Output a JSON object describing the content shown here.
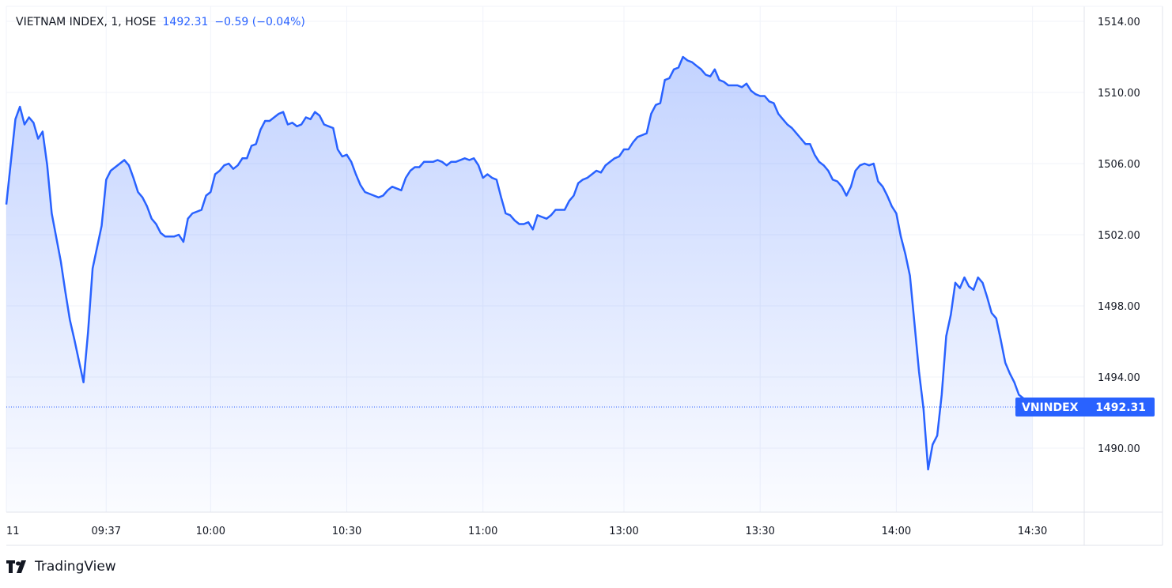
{
  "header": {
    "title": "VIETNAM INDEX, 1, HOSE",
    "last": "1492.31",
    "change": "−0.59 (−0.04%)"
  },
  "price_label": {
    "symbol": "VNINDEX",
    "value": "1492.31"
  },
  "brand": {
    "name": "TradingView"
  },
  "colors": {
    "line": "#2962ff",
    "grid": "#f0f3fa",
    "label_bg": "#2962ff"
  },
  "chart_data": {
    "type": "area",
    "title": "VIETNAM INDEX, 1, HOSE",
    "ylim": [
      1487,
      1515
    ],
    "y_ticks": [
      "1490.00",
      "1494.00",
      "1498.00",
      "1502.00",
      "1506.00",
      "1510.00",
      "1514.00"
    ],
    "x_ticks": [
      "11",
      "09:37",
      "10:00",
      "10:30",
      "11:00",
      "13:00",
      "13:30",
      "14:00",
      "14:30"
    ],
    "grid": true,
    "y_axis": "right",
    "last_value": 1492.31,
    "points": [
      [
        "09:15",
        1503.7
      ],
      [
        "09:17",
        1508.5
      ],
      [
        "09:18",
        1509.2
      ],
      [
        "09:19",
        1508.2
      ],
      [
        "09:20",
        1508.6
      ],
      [
        "09:21",
        1508.3
      ],
      [
        "09:22",
        1507.4
      ],
      [
        "09:23",
        1507.8
      ],
      [
        "09:24",
        1505.9
      ],
      [
        "09:25",
        1503.2
      ],
      [
        "09:27",
        1500.5
      ],
      [
        "09:28",
        1498.8
      ],
      [
        "09:29",
        1497.2
      ],
      [
        "09:30",
        1496.1
      ],
      [
        "09:32",
        1493.7
      ],
      [
        "09:33",
        1496.5
      ],
      [
        "09:34",
        1500.1
      ],
      [
        "09:36",
        1502.5
      ],
      [
        "09:37",
        1505.1
      ],
      [
        "09:38",
        1505.6
      ],
      [
        "09:40",
        1506.0
      ],
      [
        "09:41",
        1506.2
      ],
      [
        "09:42",
        1505.9
      ],
      [
        "09:43",
        1505.2
      ],
      [
        "09:44",
        1504.4
      ],
      [
        "09:45",
        1504.1
      ],
      [
        "09:46",
        1503.6
      ],
      [
        "09:47",
        1502.9
      ],
      [
        "09:48",
        1502.6
      ],
      [
        "09:49",
        1502.1
      ],
      [
        "09:50",
        1501.9
      ],
      [
        "09:52",
        1501.9
      ],
      [
        "09:53",
        1502.0
      ],
      [
        "09:54",
        1501.6
      ],
      [
        "09:55",
        1502.9
      ],
      [
        "09:56",
        1503.2
      ],
      [
        "09:58",
        1503.4
      ],
      [
        "09:59",
        1504.2
      ],
      [
        "10:00",
        1504.4
      ],
      [
        "10:01",
        1505.4
      ],
      [
        "10:02",
        1505.6
      ],
      [
        "10:03",
        1505.9
      ],
      [
        "10:04",
        1506.0
      ],
      [
        "10:05",
        1505.7
      ],
      [
        "10:06",
        1505.9
      ],
      [
        "10:07",
        1506.3
      ],
      [
        "10:08",
        1506.3
      ],
      [
        "10:09",
        1507.0
      ],
      [
        "10:10",
        1507.1
      ],
      [
        "10:11",
        1507.9
      ],
      [
        "10:12",
        1508.4
      ],
      [
        "10:13",
        1508.4
      ],
      [
        "10:15",
        1508.8
      ],
      [
        "10:16",
        1508.9
      ],
      [
        "10:17",
        1508.2
      ],
      [
        "10:18",
        1508.3
      ],
      [
        "10:19",
        1508.1
      ],
      [
        "10:20",
        1508.2
      ],
      [
        "10:21",
        1508.6
      ],
      [
        "10:22",
        1508.5
      ],
      [
        "10:23",
        1508.9
      ],
      [
        "10:24",
        1508.7
      ],
      [
        "10:25",
        1508.2
      ],
      [
        "10:26",
        1508.1
      ],
      [
        "10:27",
        1508.0
      ],
      [
        "10:28",
        1506.8
      ],
      [
        "10:29",
        1506.4
      ],
      [
        "10:30",
        1506.5
      ],
      [
        "10:31",
        1506.1
      ],
      [
        "10:32",
        1505.4
      ],
      [
        "10:33",
        1504.8
      ],
      [
        "10:34",
        1504.4
      ],
      [
        "10:36",
        1504.2
      ],
      [
        "10:37",
        1504.1
      ],
      [
        "10:38",
        1504.2
      ],
      [
        "10:39",
        1504.5
      ],
      [
        "10:40",
        1504.7
      ],
      [
        "10:42",
        1504.5
      ],
      [
        "10:43",
        1505.2
      ],
      [
        "10:44",
        1505.6
      ],
      [
        "10:45",
        1505.8
      ],
      [
        "10:46",
        1505.8
      ],
      [
        "10:47",
        1506.1
      ],
      [
        "10:49",
        1506.1
      ],
      [
        "10:50",
        1506.2
      ],
      [
        "10:51",
        1506.1
      ],
      [
        "10:52",
        1505.9
      ],
      [
        "10:53",
        1506.1
      ],
      [
        "10:54",
        1506.1
      ],
      [
        "10:56",
        1506.3
      ],
      [
        "10:57",
        1506.2
      ],
      [
        "10:58",
        1506.3
      ],
      [
        "10:59",
        1505.9
      ],
      [
        "11:00",
        1505.2
      ],
      [
        "11:01",
        1505.4
      ],
      [
        "11:02",
        1505.2
      ],
      [
        "11:03",
        1505.1
      ],
      [
        "11:04",
        1504.1
      ],
      [
        "11:05",
        1503.2
      ],
      [
        "11:06",
        1503.1
      ],
      [
        "11:07",
        1502.8
      ],
      [
        "11:08",
        1502.6
      ],
      [
        "11:09",
        1502.6
      ],
      [
        "11:10",
        1502.7
      ],
      [
        "11:11",
        1502.3
      ],
      [
        "11:12",
        1503.1
      ],
      [
        "11:13",
        1503.0
      ],
      [
        "11:14",
        1502.9
      ],
      [
        "11:15",
        1503.1
      ],
      [
        "11:16",
        1503.4
      ],
      [
        "11:17",
        1503.4
      ],
      [
        "11:18",
        1503.4
      ],
      [
        "11:19",
        1503.9
      ],
      [
        "11:20",
        1504.2
      ],
      [
        "11:21",
        1504.9
      ],
      [
        "11:22",
        1505.1
      ],
      [
        "11:23",
        1505.2
      ],
      [
        "11:24",
        1505.4
      ],
      [
        "11:25",
        1505.6
      ],
      [
        "11:26",
        1505.5
      ],
      [
        "11:27",
        1505.9
      ],
      [
        "11:28",
        1506.1
      ],
      [
        "11:29",
        1506.3
      ],
      [
        "11:30",
        1506.4
      ],
      [
        "13:00",
        1506.8
      ],
      [
        "13:01",
        1506.8
      ],
      [
        "13:02",
        1507.2
      ],
      [
        "13:03",
        1507.5
      ],
      [
        "13:04",
        1507.6
      ],
      [
        "13:05",
        1507.7
      ],
      [
        "13:06",
        1508.8
      ],
      [
        "13:07",
        1509.3
      ],
      [
        "13:08",
        1509.4
      ],
      [
        "13:09",
        1510.7
      ],
      [
        "13:10",
        1510.8
      ],
      [
        "13:11",
        1511.3
      ],
      [
        "13:12",
        1511.4
      ],
      [
        "13:13",
        1512.0
      ],
      [
        "13:14",
        1511.8
      ],
      [
        "13:15",
        1511.7
      ],
      [
        "13:16",
        1511.5
      ],
      [
        "13:17",
        1511.3
      ],
      [
        "13:18",
        1511.0
      ],
      [
        "13:19",
        1510.9
      ],
      [
        "13:20",
        1511.3
      ],
      [
        "13:21",
        1510.7
      ],
      [
        "13:22",
        1510.6
      ],
      [
        "13:23",
        1510.4
      ],
      [
        "13:25",
        1510.4
      ],
      [
        "13:26",
        1510.3
      ],
      [
        "13:27",
        1510.5
      ],
      [
        "13:28",
        1510.1
      ],
      [
        "13:29",
        1509.9
      ],
      [
        "13:30",
        1509.8
      ],
      [
        "13:31",
        1509.8
      ],
      [
        "13:32",
        1509.5
      ],
      [
        "13:33",
        1509.4
      ],
      [
        "13:34",
        1508.8
      ],
      [
        "13:35",
        1508.5
      ],
      [
        "13:36",
        1508.2
      ],
      [
        "13:37",
        1508.0
      ],
      [
        "13:38",
        1507.7
      ],
      [
        "13:39",
        1507.4
      ],
      [
        "13:40",
        1507.1
      ],
      [
        "13:41",
        1507.1
      ],
      [
        "13:42",
        1506.5
      ],
      [
        "13:43",
        1506.1
      ],
      [
        "13:44",
        1505.9
      ],
      [
        "13:45",
        1505.6
      ],
      [
        "13:46",
        1505.1
      ],
      [
        "13:47",
        1505.0
      ],
      [
        "13:48",
        1504.7
      ],
      [
        "13:49",
        1504.2
      ],
      [
        "13:50",
        1504.7
      ],
      [
        "13:51",
        1505.6
      ],
      [
        "13:52",
        1505.9
      ],
      [
        "13:53",
        1506.0
      ],
      [
        "13:54",
        1505.9
      ],
      [
        "13:55",
        1506.0
      ],
      [
        "13:56",
        1505.0
      ],
      [
        "13:57",
        1504.7
      ],
      [
        "13:58",
        1504.2
      ],
      [
        "13:59",
        1503.6
      ],
      [
        "14:00",
        1503.2
      ],
      [
        "14:01",
        1501.9
      ],
      [
        "14:02",
        1500.9
      ],
      [
        "14:03",
        1499.7
      ],
      [
        "14:04",
        1497.0
      ],
      [
        "14:05",
        1494.3
      ],
      [
        "14:06",
        1492.2
      ],
      [
        "14:07",
        1488.8
      ],
      [
        "14:08",
        1490.2
      ],
      [
        "14:09",
        1490.7
      ],
      [
        "14:10",
        1493.0
      ],
      [
        "14:11",
        1496.3
      ],
      [
        "14:12",
        1497.5
      ],
      [
        "14:13",
        1499.3
      ],
      [
        "14:14",
        1499.0
      ],
      [
        "14:15",
        1499.6
      ],
      [
        "14:16",
        1499.1
      ],
      [
        "14:17",
        1498.9
      ],
      [
        "14:18",
        1499.6
      ],
      [
        "14:19",
        1499.3
      ],
      [
        "14:20",
        1498.5
      ],
      [
        "14:21",
        1497.6
      ],
      [
        "14:22",
        1497.3
      ],
      [
        "14:23",
        1496.1
      ],
      [
        "14:24",
        1494.8
      ],
      [
        "14:25",
        1494.2
      ],
      [
        "14:26",
        1493.7
      ],
      [
        "14:27",
        1493.0
      ],
      [
        "14:28",
        1492.8
      ],
      [
        "14:30",
        1492.31
      ]
    ]
  }
}
